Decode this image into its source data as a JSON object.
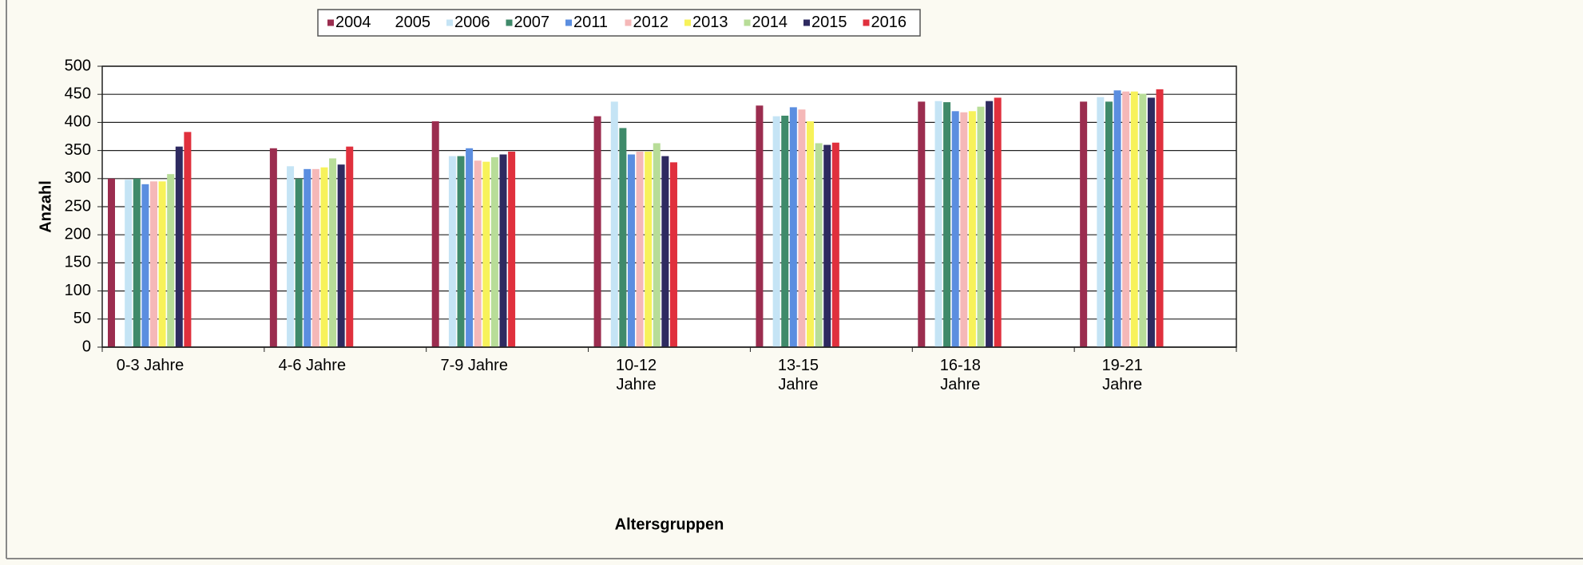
{
  "chart_data": {
    "type": "bar",
    "x_label": "Altersgruppen",
    "y_label": "Anzahl",
    "categories": [
      "0-3 Jahre",
      "4-6 Jahre",
      "7-9 Jahre",
      "10-12 Jahre",
      "13-15 Jahre",
      "16-18 Jahre",
      "19-21 Jahre"
    ],
    "series": [
      {
        "name": "2004",
        "color": "#9b2d4f",
        "values": [
          300,
          354,
          402,
          411,
          430,
          437,
          437
        ]
      },
      {
        "name": "2005",
        "color": "#ffffff",
        "values": [
          null,
          null,
          null,
          null,
          null,
          null,
          null
        ]
      },
      {
        "name": "2006",
        "color": "#c5e4f5",
        "values": [
          298,
          322,
          340,
          437,
          411,
          438,
          445
        ]
      },
      {
        "name": "2007",
        "color": "#3f8a6a",
        "values": [
          300,
          300,
          340,
          390,
          412,
          436,
          437
        ]
      },
      {
        "name": "2011",
        "color": "#5b8ee0",
        "values": [
          290,
          317,
          354,
          343,
          427,
          420,
          457
        ]
      },
      {
        "name": "2012",
        "color": "#f5b8b8",
        "values": [
          295,
          317,
          332,
          348,
          423,
          418,
          455
        ]
      },
      {
        "name": "2013",
        "color": "#f7f25a",
        "values": [
          295,
          320,
          330,
          348,
          402,
          420,
          455
        ]
      },
      {
        "name": "2014",
        "color": "#b8dd98",
        "values": [
          308,
          336,
          338,
          363,
          363,
          428,
          451
        ]
      },
      {
        "name": "2015",
        "color": "#2e2a60",
        "values": [
          357,
          325,
          343,
          340,
          360,
          438,
          444
        ]
      },
      {
        "name": "2016",
        "color": "#e0303d",
        "values": [
          383,
          357,
          348,
          329,
          364,
          444,
          459
        ]
      }
    ],
    "ylim": [
      0,
      500
    ],
    "yticks": [
      0,
      50,
      100,
      150,
      200,
      250,
      300,
      350,
      400,
      450,
      500
    ],
    "grid": true,
    "legend": "top"
  }
}
